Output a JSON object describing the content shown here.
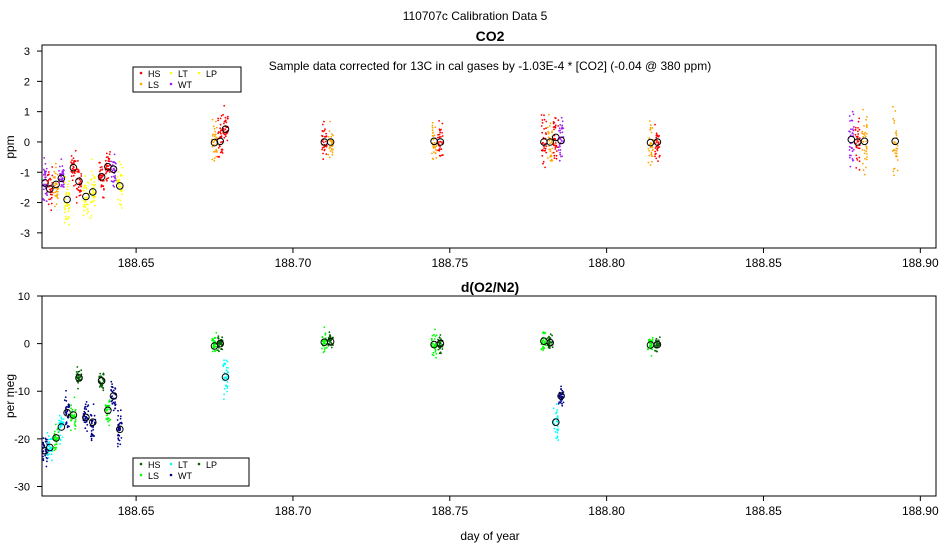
{
  "page_title": "110707c   Calibration Data 5",
  "colors": {
    "HS": "#ff0000",
    "LS": "#ffa500",
    "LT": "#ffff00",
    "WT": "#a020f0",
    "o2_HS": "#006400",
    "o2_LS": "#00ff00",
    "o2_LT": "#00ffff",
    "o2_WT": "#00008b",
    "mean_marker": "#000000"
  },
  "chart_data": [
    {
      "type": "scatter",
      "title": "CO2",
      "annotation": "Sample data corrected for 13C in cal gases by -1.03E-4 * [CO2] (-0.04 @ 380 ppm)",
      "xlabel": "",
      "ylabel": "ppm",
      "xlim": [
        188.62,
        188.905
      ],
      "ylim": [
        -3.5,
        3.2
      ],
      "xticks": [
        188.65,
        188.7,
        188.75,
        188.8,
        188.85,
        188.9
      ],
      "xtick_labels": [
        "188.65",
        "188.70",
        "188.75",
        "188.80",
        "188.85",
        "188.90"
      ],
      "yticks": [
        -3,
        -2,
        -1,
        0,
        1,
        2,
        3
      ],
      "legend": {
        "position": "top-left",
        "entries": [
          {
            "label": "HS",
            "key": "HS"
          },
          {
            "label": "LS",
            "key": "LS"
          },
          {
            "label": "LT",
            "key": "LT"
          },
          {
            "label": "WT",
            "key": "WT"
          },
          {
            "label": "LP",
            "key": "LT"
          }
        ]
      },
      "clusters": [
        {
          "x": 188.621,
          "y": -1.35,
          "spread": 0.8,
          "key": "WT"
        },
        {
          "x": 188.6225,
          "y": -1.55,
          "spread": 0.7,
          "key": "HS"
        },
        {
          "x": 188.6245,
          "y": -1.4,
          "spread": 0.7,
          "key": "LS"
        },
        {
          "x": 188.6262,
          "y": -1.2,
          "spread": 0.6,
          "key": "WT"
        },
        {
          "x": 188.628,
          "y": -1.9,
          "spread": 0.8,
          "key": "LT"
        },
        {
          "x": 188.63,
          "y": -0.85,
          "spread": 0.6,
          "key": "HS"
        },
        {
          "x": 188.6318,
          "y": -1.3,
          "spread": 0.7,
          "key": "HS"
        },
        {
          "x": 188.634,
          "y": -1.8,
          "spread": 0.9,
          "key": "LT"
        },
        {
          "x": 188.6362,
          "y": -1.65,
          "spread": 0.9,
          "key": "LT"
        },
        {
          "x": 188.639,
          "y": -1.15,
          "spread": 0.6,
          "key": "HS"
        },
        {
          "x": 188.641,
          "y": -0.82,
          "spread": 0.6,
          "key": "HS"
        },
        {
          "x": 188.6428,
          "y": -0.9,
          "spread": 0.6,
          "key": "WT"
        },
        {
          "x": 188.6448,
          "y": -1.45,
          "spread": 0.8,
          "key": "LT"
        },
        {
          "x": 188.675,
          "y": -0.02,
          "spread": 0.8,
          "key": "LS"
        },
        {
          "x": 188.6768,
          "y": 0.02,
          "spread": 0.8,
          "key": "HS"
        },
        {
          "x": 188.6785,
          "y": 0.42,
          "spread": 0.7,
          "key": "HS"
        },
        {
          "x": 188.71,
          "y": 0.0,
          "spread": 0.6,
          "key": "HS"
        },
        {
          "x": 188.712,
          "y": 0.0,
          "spread": 0.6,
          "key": "LS"
        },
        {
          "x": 188.745,
          "y": 0.02,
          "spread": 0.7,
          "key": "LS"
        },
        {
          "x": 188.747,
          "y": 0.0,
          "spread": 0.7,
          "key": "HS"
        },
        {
          "x": 188.78,
          "y": 0.0,
          "spread": 0.8,
          "key": "HS"
        },
        {
          "x": 188.782,
          "y": 0.0,
          "spread": 0.9,
          "key": "LS"
        },
        {
          "x": 188.7838,
          "y": 0.15,
          "spread": 0.8,
          "key": "HS"
        },
        {
          "x": 188.7855,
          "y": 0.05,
          "spread": 0.8,
          "key": "WT"
        },
        {
          "x": 188.814,
          "y": -0.02,
          "spread": 0.7,
          "key": "LS"
        },
        {
          "x": 188.8162,
          "y": 0.0,
          "spread": 0.7,
          "key": "HS"
        },
        {
          "x": 188.878,
          "y": 0.08,
          "spread": 1.2,
          "key": "WT"
        },
        {
          "x": 188.88,
          "y": 0.0,
          "spread": 1.2,
          "key": "HS"
        },
        {
          "x": 188.8822,
          "y": 0.02,
          "spread": 1.2,
          "key": "LS"
        },
        {
          "x": 188.892,
          "y": 0.02,
          "spread": 1.6,
          "key": "LS"
        }
      ]
    },
    {
      "type": "scatter",
      "title": "d(O2/N2)",
      "xlabel": "day of year",
      "ylabel": "per meg",
      "xlim": [
        188.62,
        188.905
      ],
      "ylim": [
        -32,
        10
      ],
      "xticks": [
        188.65,
        188.7,
        188.75,
        188.8,
        188.85,
        188.9
      ],
      "xtick_labels": [
        "188.65",
        "188.70",
        "188.75",
        "188.80",
        "188.85",
        "188.90"
      ],
      "yticks": [
        -30,
        -20,
        -10,
        0,
        10
      ],
      "legend": {
        "position": "bottom-left",
        "entries": [
          {
            "label": "HS",
            "key": "o2_HS"
          },
          {
            "label": "LS",
            "key": "o2_LS"
          },
          {
            "label": "LT",
            "key": "o2_LT"
          },
          {
            "label": "WT",
            "key": "o2_WT"
          },
          {
            "label": "LP",
            "key": "o2_HS"
          }
        ]
      },
      "clusters": [
        {
          "x": 188.621,
          "y": -22.5,
          "spread": 3.5,
          "key": "o2_WT"
        },
        {
          "x": 188.6225,
          "y": -21.8,
          "spread": 3.0,
          "key": "o2_LT"
        },
        {
          "x": 188.6245,
          "y": -19.8,
          "spread": 3.0,
          "key": "o2_LS"
        },
        {
          "x": 188.6262,
          "y": -17.5,
          "spread": 3.0,
          "key": "o2_LT"
        },
        {
          "x": 188.628,
          "y": -14.5,
          "spread": 3.5,
          "key": "o2_WT"
        },
        {
          "x": 188.63,
          "y": -15.0,
          "spread": 3.0,
          "key": "o2_LS"
        },
        {
          "x": 188.6318,
          "y": -7.2,
          "spread": 2.0,
          "key": "o2_HS"
        },
        {
          "x": 188.634,
          "y": -15.5,
          "spread": 3.5,
          "key": "o2_WT"
        },
        {
          "x": 188.6362,
          "y": -16.5,
          "spread": 3.5,
          "key": "o2_WT"
        },
        {
          "x": 188.639,
          "y": -7.8,
          "spread": 2.0,
          "key": "o2_HS"
        },
        {
          "x": 188.641,
          "y": -14.0,
          "spread": 3.0,
          "key": "o2_LS"
        },
        {
          "x": 188.6428,
          "y": -11.0,
          "spread": 3.5,
          "key": "o2_WT"
        },
        {
          "x": 188.6448,
          "y": -18.0,
          "spread": 4.5,
          "key": "o2_WT"
        },
        {
          "x": 188.675,
          "y": -0.5,
          "spread": 2.5,
          "key": "o2_LS"
        },
        {
          "x": 188.6768,
          "y": 0.0,
          "spread": 2.0,
          "key": "o2_HS"
        },
        {
          "x": 188.6785,
          "y": -7.0,
          "spread": 4.0,
          "key": "o2_LT"
        },
        {
          "x": 188.71,
          "y": 0.3,
          "spread": 2.5,
          "key": "o2_LS"
        },
        {
          "x": 188.712,
          "y": 0.4,
          "spread": 2.0,
          "key": "o2_HS"
        },
        {
          "x": 188.745,
          "y": -0.2,
          "spread": 2.5,
          "key": "o2_LS"
        },
        {
          "x": 188.747,
          "y": 0.0,
          "spread": 2.0,
          "key": "o2_HS"
        },
        {
          "x": 188.78,
          "y": 0.5,
          "spread": 2.5,
          "key": "o2_LS"
        },
        {
          "x": 188.782,
          "y": 0.2,
          "spread": 2.0,
          "key": "o2_HS"
        },
        {
          "x": 188.7838,
          "y": -16.5,
          "spread": 5.0,
          "key": "o2_LT"
        },
        {
          "x": 188.7855,
          "y": -11.0,
          "spread": 2.0,
          "key": "o2_WT"
        },
        {
          "x": 188.814,
          "y": -0.3,
          "spread": 2.0,
          "key": "o2_LS"
        },
        {
          "x": 188.8162,
          "y": -0.2,
          "spread": 1.5,
          "key": "o2_HS"
        }
      ]
    }
  ]
}
